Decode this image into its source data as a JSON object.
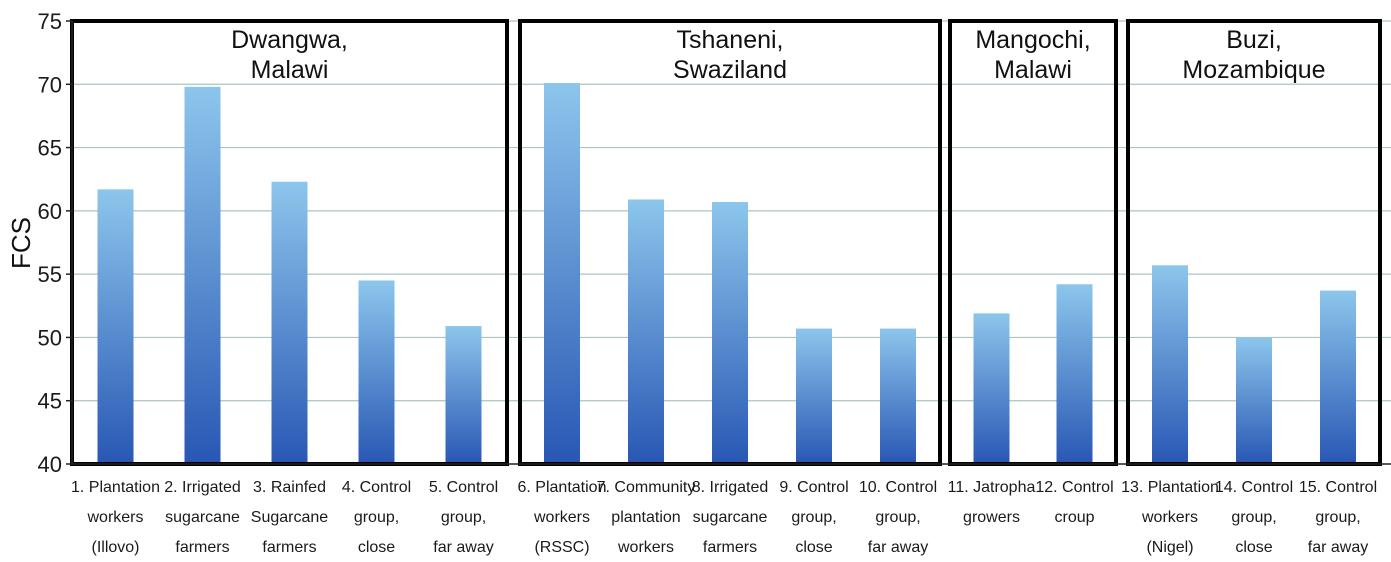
{
  "chart_data": {
    "type": "bar",
    "ylabel": "FCS",
    "xlabel": "",
    "ylim": [
      40,
      75
    ],
    "yticks": [
      40,
      45,
      50,
      55,
      60,
      65,
      70,
      75
    ],
    "grid": true,
    "bar_color_top": "#8cc6ec",
    "bar_color_bottom": "#2857b4",
    "panels": [
      {
        "title": [
          "Dwangwa,",
          "Malawi"
        ],
        "categories": [
          [
            "1. Plantation",
            "workers",
            "(Illovo)"
          ],
          [
            "2. Irrigated",
            "sugarcane",
            "farmers"
          ],
          [
            "3. Rainfed",
            "Sugarcane",
            "farmers"
          ],
          [
            "4. Control",
            "group,",
            "close"
          ],
          [
            "5. Control",
            "group,",
            "far away"
          ]
        ],
        "values": [
          61.7,
          69.8,
          62.3,
          54.5,
          50.9
        ]
      },
      {
        "title": [
          "Tshaneni,",
          "Swaziland"
        ],
        "categories": [
          [
            "6. Plantation",
            "workers",
            "(RSSC)"
          ],
          [
            "7. Community",
            "plantation",
            "workers"
          ],
          [
            "8. Irrigated",
            "sugarcane",
            "farmers"
          ],
          [
            "9. Control",
            "group,",
            "close"
          ],
          [
            "10. Control",
            "group,",
            "far away"
          ]
        ],
        "values": [
          70.1,
          60.9,
          60.7,
          50.7,
          50.7
        ]
      },
      {
        "title": [
          "Mangochi,",
          "Malawi"
        ],
        "categories": [
          [
            "11. Jatropha",
            "growers"
          ],
          [
            "12. Control",
            "croup"
          ]
        ],
        "values": [
          51.9,
          54.2
        ]
      },
      {
        "title": [
          "Buzi,",
          "Mozambique"
        ],
        "categories": [
          [
            "13. Plantation",
            "workers",
            "(Nigel)"
          ],
          [
            "14. Control",
            "group,",
            "close"
          ],
          [
            "15. Control",
            "group,",
            "far away"
          ]
        ],
        "values": [
          55.7,
          50.0,
          53.7
        ]
      }
    ]
  }
}
